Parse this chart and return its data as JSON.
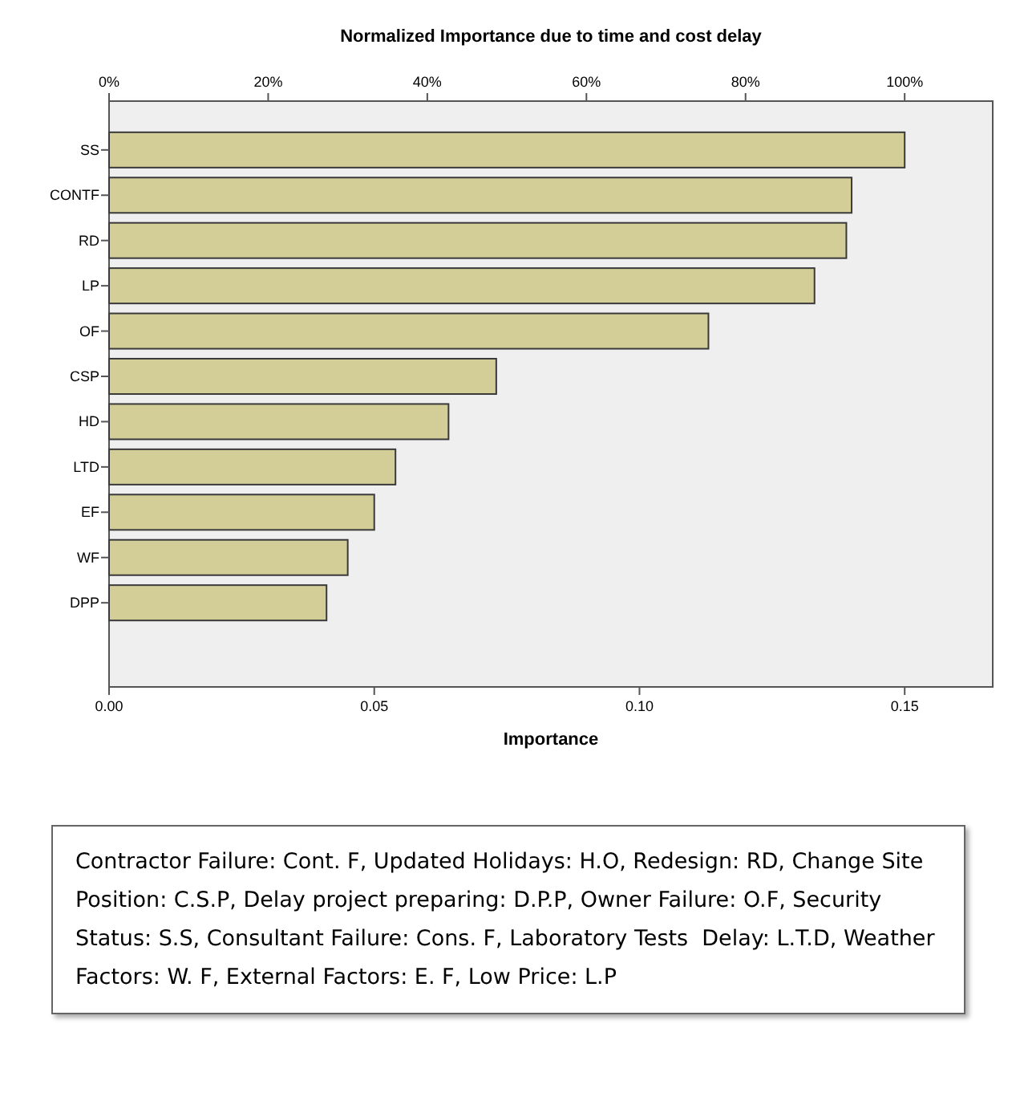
{
  "chart_data": {
    "type": "bar",
    "orientation": "horizontal",
    "title": "Normalized Importance due to time and cost delay",
    "xlabel": "Importance",
    "categories": [
      "SS",
      "CONTF",
      "RD",
      "LP",
      "OF",
      "CSP",
      "HD",
      "LTD",
      "EF",
      "WF",
      "DPP"
    ],
    "values": [
      0.15,
      0.14,
      0.139,
      0.133,
      0.113,
      0.073,
      0.064,
      0.054,
      0.05,
      0.045,
      0.041
    ],
    "color": "#d3cd98",
    "xlim": [
      0,
      0.1666
    ],
    "xticks": [
      {
        "value": 0,
        "label": "0.00"
      },
      {
        "value": 0.05,
        "label": "0.05"
      },
      {
        "value": 0.1,
        "label": "0.10"
      },
      {
        "value": 0.15,
        "label": "0.15"
      }
    ],
    "x2lim": [
      0,
      111.07
    ],
    "x2ticks": [
      {
        "value": 0,
        "label": "0%"
      },
      {
        "value": 20,
        "label": "20%"
      },
      {
        "value": 40,
        "label": "40%"
      },
      {
        "value": 60,
        "label": "60%"
      },
      {
        "value": 80,
        "label": "80%"
      },
      {
        "value": 100,
        "label": "100%"
      }
    ],
    "grid": false,
    "annotations": [
      "Contractor Failure: Cont. F, Updated Holidays: H.O, Redesign: RD, Change Site Position: C.S.P, Delay project preparing: D.P.P, Owner Failure: O.F, Security Status: S.S, Consultant Failure: Cons. F, Laboratory Tests  Delay: L.T.D, Weather Factors: W. F, External Factors: E. F, Low Price: L.P"
    ]
  }
}
